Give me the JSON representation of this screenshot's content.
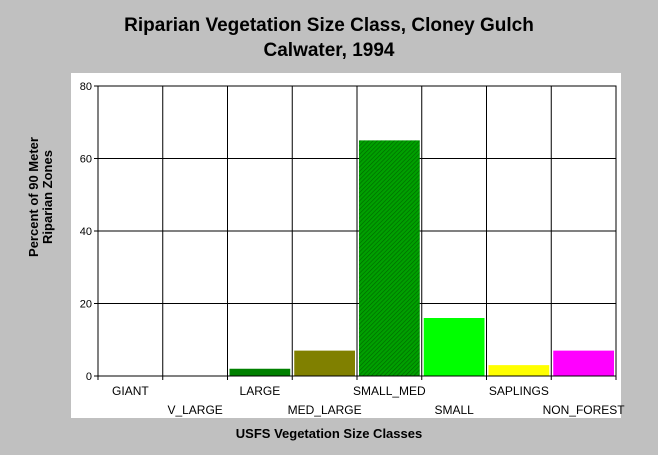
{
  "chart_data": {
    "type": "bar",
    "title": [
      "Riparian Vegetation Size Class, Cloney Gulch",
      "Calwater, 1994"
    ],
    "xlabel": "USFS Vegetation Size Classes",
    "ylabel": [
      "Percent of 90 Meter",
      "Riparian Zones"
    ],
    "ylim": [
      0,
      80
    ],
    "yticks": [
      0,
      20,
      40,
      60,
      80
    ],
    "grid": true,
    "categories": [
      "GIANT",
      "V_LARGE",
      "LARGE",
      "MED_LARGE",
      "SMALL_MED",
      "SMALL",
      "SAPLINGS",
      "NON_FOREST"
    ],
    "values": [
      0,
      0,
      2,
      7,
      65,
      16,
      3,
      7
    ],
    "colors": [
      "#000000",
      "#000000",
      "#008000",
      "#808000",
      "#00a000",
      "#00ff00",
      "#ffff00",
      "#ff00ff"
    ],
    "patterns": [
      "none",
      "none",
      "none",
      "none",
      "hatch",
      "none",
      "none",
      "none"
    ]
  }
}
